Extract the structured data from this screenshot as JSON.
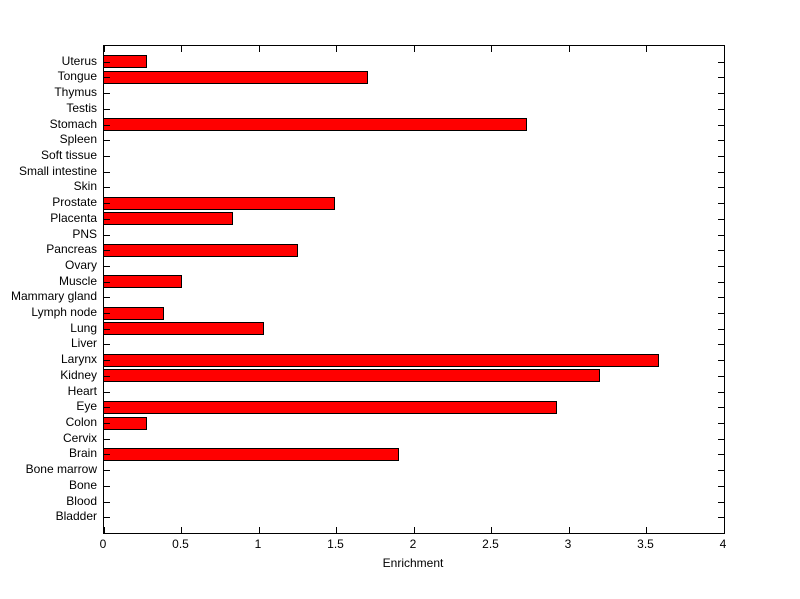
{
  "chart_data": {
    "type": "bar",
    "orientation": "horizontal",
    "title": "",
    "xlabel": "Enrichment",
    "ylabel": "",
    "xlim": [
      0,
      4
    ],
    "x_ticks": [
      0,
      0.5,
      1,
      1.5,
      2,
      2.5,
      3,
      3.5,
      4
    ],
    "x_tick_labels": [
      "0",
      "0.5",
      "1",
      "1.5",
      "2",
      "2.5",
      "3",
      "3.5",
      "4"
    ],
    "grid": false,
    "legend": "none",
    "bar_color": "#ff0000",
    "bar_edge_color": "#000000",
    "axis_color": "#000000",
    "background_color": "#ffffff",
    "categories_top_to_bottom": [
      "Uterus",
      "Tongue",
      "Thymus",
      "Testis",
      "Stomach",
      "Spleen",
      "Soft tissue",
      "Small intestine",
      "Skin",
      "Prostate",
      "Placenta",
      "PNS",
      "Pancreas",
      "Ovary",
      "Muscle",
      "Mammary gland",
      "Lymph node",
      "Lung",
      "Liver",
      "Larynx",
      "Kidney",
      "Heart",
      "Eye",
      "Colon",
      "Cervix",
      "Brain",
      "Bone marrow",
      "Bone",
      "Blood",
      "Bladder"
    ],
    "values": [
      0.28,
      1.7,
      0,
      0,
      2.73,
      0,
      0,
      0,
      0,
      1.49,
      0.83,
      0,
      1.25,
      0,
      0.5,
      0,
      0.39,
      1.03,
      0,
      3.58,
      3.2,
      0,
      2.92,
      0.28,
      0,
      1.9,
      0,
      0,
      0,
      0
    ]
  }
}
